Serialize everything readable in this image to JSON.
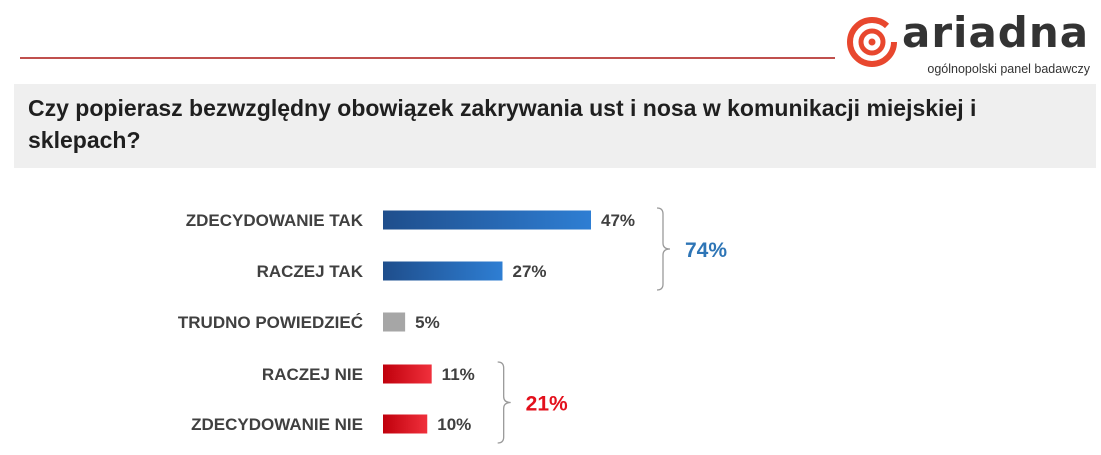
{
  "logo": {
    "name": "ariadna",
    "tagline": "ogólnopolski panel badawczy"
  },
  "question": "Czy popierasz bezwzględny obowiązek zakrywania ust i nosa w komunikacji miejskiej i sklepach?",
  "colors": {
    "rule": "#c0504d",
    "yes_dark": "#1f4e8c",
    "yes_light": "#2e7ed3",
    "neutral": "#a6a6a6",
    "no_dark": "#c0000c",
    "no_light": "#f0303c",
    "yes_sum": "#2e75b6",
    "no_sum": "#e3101c"
  },
  "chart_data": {
    "type": "bar",
    "orientation": "horizontal",
    "categories": [
      "ZDECYDOWANIE TAK",
      "RACZEJ TAK",
      "TRUDNO POWIEDZIEĆ",
      "RACZEJ NIE",
      "ZDECYDOWANIE NIE"
    ],
    "values": [
      47,
      27,
      5,
      11,
      10
    ],
    "value_labels": [
      "47%",
      "27%",
      "5%",
      "11%",
      "10%"
    ],
    "groups": [
      {
        "members": [
          0,
          1
        ],
        "total_label": "74%",
        "color": "#2e75b6"
      },
      {
        "members": [
          3,
          4
        ],
        "total_label": "21%",
        "color": "#e3101c"
      }
    ],
    "bar_colors": [
      "blue",
      "blue",
      "gray",
      "red",
      "red"
    ],
    "grid": false,
    "xlim": [
      0,
      47
    ]
  }
}
